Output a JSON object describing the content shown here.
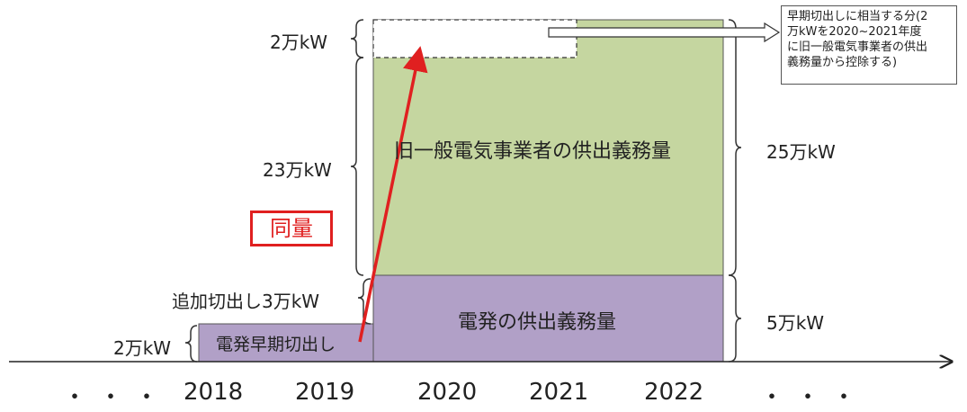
{
  "labels": {
    "top_left_2man": "2万kW",
    "middle_23man": "23万kW",
    "addl_cut_3man": "追加切出し3万kW",
    "bottom_2man": "2万kW",
    "right_25man": "25万kW",
    "right_5man": "5万kW",
    "same_amount": "同量"
  },
  "blocks": {
    "green_label": "旧一般電気事業者の供出義務量",
    "purple_label": "電発の供出義務量",
    "early_cut_label": "電発早期切出し"
  },
  "note": {
    "text": "早期切出しに相当する分(2\n万kWを2020~2021年度\nに旧一般電気事業者の供出\n義務量から控除する)"
  },
  "axis": {
    "years": [
      "2018",
      "2019",
      "2020",
      "2021",
      "2022"
    ],
    "dots_left": "・・・",
    "dots_right": "・・・"
  },
  "colors": {
    "green": "#c5d6a0",
    "purple": "#b1a0c7",
    "red": "#e02020",
    "outline": "#555555"
  }
}
